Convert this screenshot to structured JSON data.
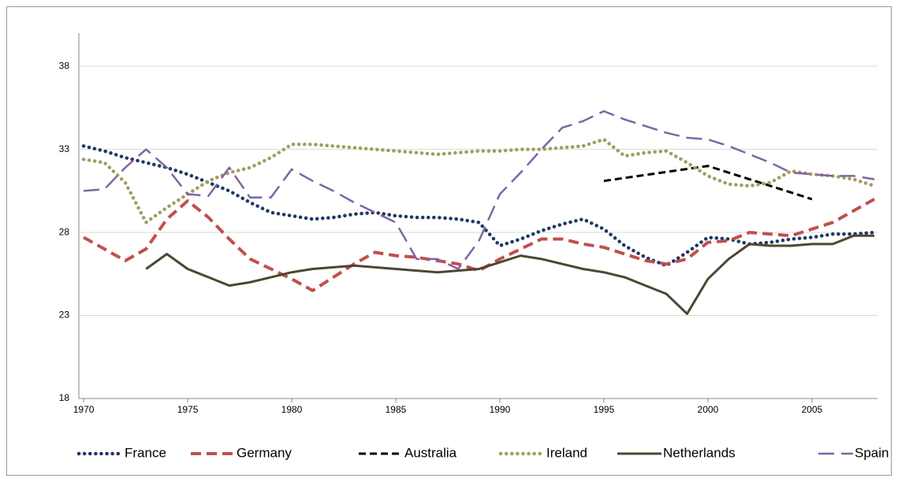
{
  "chart_data": {
    "type": "line",
    "x": [
      1970,
      1971,
      1972,
      1973,
      1974,
      1975,
      1976,
      1977,
      1978,
      1979,
      1980,
      1981,
      1982,
      1983,
      1984,
      1985,
      1986,
      1987,
      1988,
      1989,
      1990,
      1991,
      1992,
      1993,
      1994,
      1995,
      1996,
      1997,
      1998,
      1999,
      2000,
      2001,
      2002,
      2003,
      2004,
      2005,
      2006,
      2007,
      2008
    ],
    "xlim": [
      1969.77,
      2008.15
    ],
    "xticks": [
      1970,
      1975,
      1980,
      1985,
      1990,
      1995,
      2000,
      2005
    ],
    "ylim": [
      18,
      40
    ],
    "yticks": [
      18,
      23,
      28,
      33,
      38
    ],
    "grid": true,
    "legend": "bottom",
    "series": [
      {
        "name": "France",
        "color": "#1f3864",
        "style": "dotted",
        "values": [
          33.2,
          32.9,
          32.5,
          32.2,
          31.9,
          31.5,
          31.0,
          30.5,
          29.8,
          29.2,
          29.0,
          28.8,
          28.9,
          29.1,
          29.2,
          29.0,
          28.9,
          28.9,
          28.8,
          28.6,
          27.2,
          27.6,
          28.1,
          28.5,
          28.8,
          28.2,
          27.2,
          26.5,
          26.0,
          26.8,
          27.7,
          27.6,
          27.3,
          27.4,
          27.6,
          27.7,
          27.9,
          27.9,
          28.0
        ]
      },
      {
        "name": "Germany",
        "color": "#c0504d",
        "style": "dashed",
        "values": [
          27.7,
          27.0,
          26.3,
          27.0,
          28.8,
          29.9,
          28.9,
          27.6,
          26.4,
          25.8,
          25.2,
          24.5,
          25.3,
          26.1,
          26.8,
          26.6,
          26.5,
          26.3,
          26.1,
          25.7,
          26.4,
          27.0,
          27.6,
          27.6,
          27.3,
          27.1,
          26.7,
          26.3,
          26.1,
          26.4,
          27.4,
          27.5,
          28.0,
          27.9,
          27.8,
          28.2,
          28.6,
          29.3,
          30.0
        ]
      },
      {
        "name": "Australia",
        "color": "#000000",
        "style": "short-dashed",
        "x": [
          1995,
          2000,
          2005
        ],
        "values": [
          31.1,
          32.0,
          30.0
        ]
      },
      {
        "name": "Ireland",
        "color": "#a19d60",
        "style": "dotted",
        "values": [
          32.4,
          32.2,
          31.0,
          28.6,
          29.5,
          30.3,
          31.1,
          31.6,
          31.9,
          32.5,
          33.3,
          33.3,
          33.2,
          33.1,
          33.0,
          32.9,
          32.8,
          32.7,
          32.8,
          32.9,
          32.9,
          33.0,
          33.0,
          33.1,
          33.2,
          33.6,
          32.6,
          32.8,
          32.9,
          32.2,
          31.4,
          30.9,
          30.8,
          31.0,
          31.7,
          31.5,
          31.4,
          31.2,
          30.8
        ]
      },
      {
        "name": "Netherlands",
        "color": "#4e4630",
        "style": "solid",
        "values": [
          null,
          null,
          null,
          25.8,
          26.7,
          25.8,
          25.3,
          24.8,
          25.0,
          25.3,
          25.6,
          25.8,
          25.9,
          26.0,
          25.9,
          25.8,
          25.7,
          25.6,
          25.7,
          25.8,
          26.2,
          26.6,
          26.4,
          26.1,
          25.8,
          25.6,
          25.3,
          24.8,
          24.3,
          23.1,
          25.2,
          26.4,
          27.3,
          27.2,
          27.2,
          27.3,
          27.3,
          27.8,
          27.8
        ]
      },
      {
        "name": "Spain",
        "color": "#8064a2",
        "style": "long-dashed",
        "values": [
          30.5,
          30.6,
          31.9,
          33.0,
          31.9,
          30.3,
          30.2,
          31.9,
          30.1,
          30.1,
          31.8,
          31.1,
          30.5,
          29.8,
          29.2,
          28.6,
          26.4,
          26.4,
          25.8,
          27.5,
          30.3,
          31.6,
          33.0,
          34.3,
          34.7,
          35.3,
          34.8,
          34.4,
          34.0,
          33.7,
          33.6,
          33.2,
          32.7,
          32.2,
          31.6,
          31.5,
          31.4,
          31.4,
          31.2
        ]
      }
    ]
  }
}
